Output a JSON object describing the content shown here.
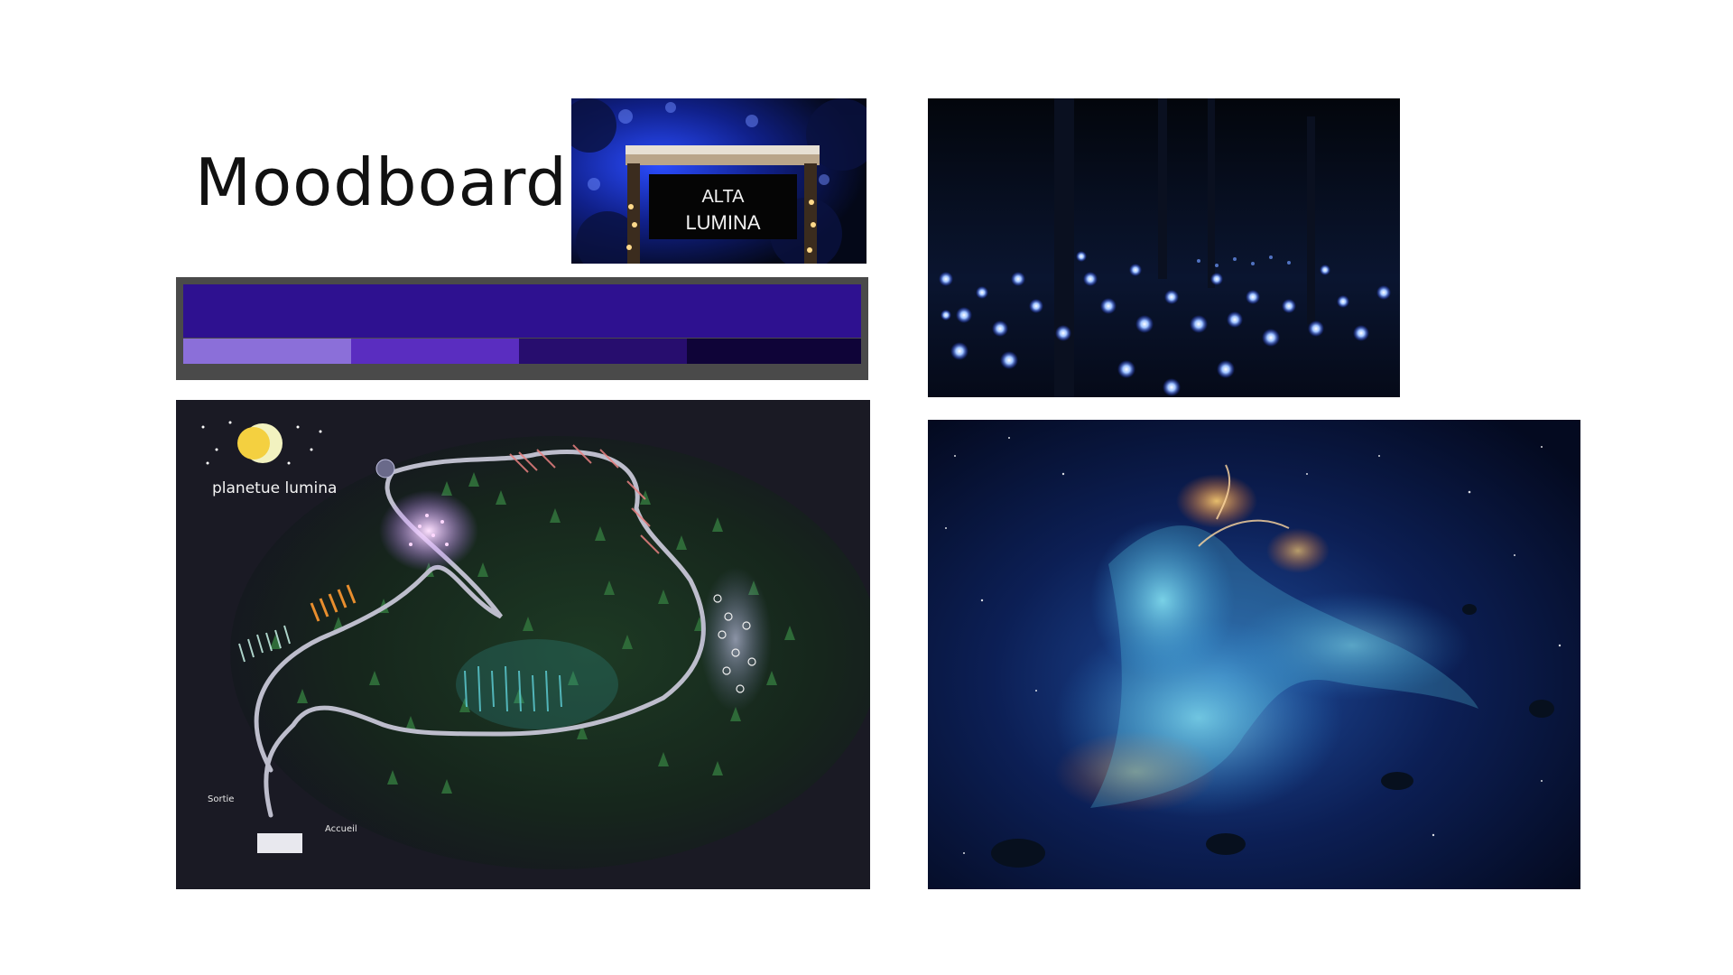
{
  "slide": {
    "title": "Moodboard"
  },
  "sign_photo": {
    "sign_text_line1": "ALTA",
    "sign_text_line2": "LUMINA"
  },
  "palette": {
    "main_color": "#2e1190",
    "swatches": [
      "#8b6fd9",
      "#5a2dc0",
      "#270d6e",
      "#0f0438"
    ],
    "frame_color": "#4a4a4a"
  },
  "map": {
    "title": "planetue lumina",
    "exit_label": "Sortie",
    "entrance_label": "Accueil"
  }
}
